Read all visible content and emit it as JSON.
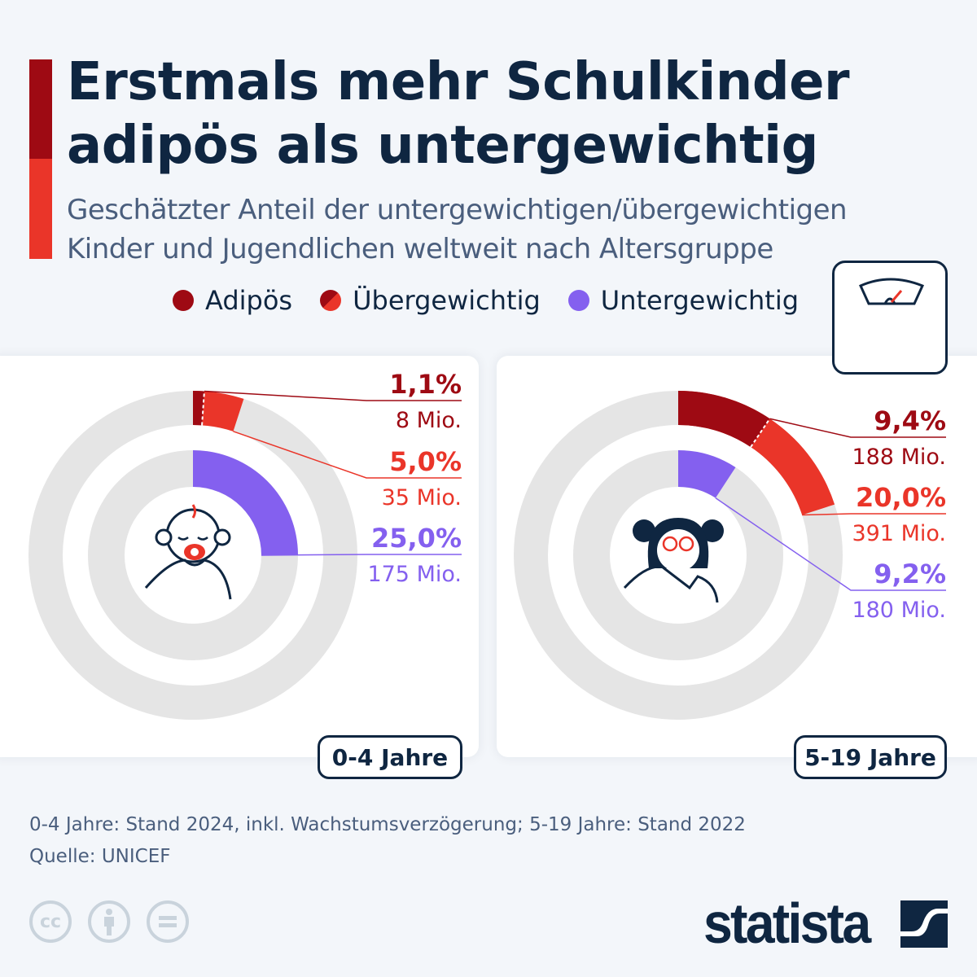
{
  "header": {
    "title_line1": "Erstmals mehr Schulkinder",
    "title_line2": "adipös als untergewichtig",
    "subtitle_line1": "Geschätzter Anteil der untergewichtigen/übergewichtigen",
    "subtitle_line2": "Kinder und Jugendlichen weltweit nach Altersgruppe"
  },
  "colors": {
    "adipoes": "#9e0a13",
    "uebergewichtig": "#ea3529",
    "untergewichtig": "#8460ef",
    "track": "#e5e5e5",
    "navy": "#0f2641"
  },
  "legend": [
    {
      "label": "Adipös",
      "icon": "circle-dark-red"
    },
    {
      "label": "Übergewichtig",
      "icon": "circle-half-red"
    },
    {
      "label": "Untergewichtig",
      "icon": "circle-purple"
    }
  ],
  "chart_data": [
    {
      "type": "pie",
      "subtype": "concentric-donut",
      "group": "0-4 Jahre",
      "icon": "baby-icon",
      "series": [
        {
          "name": "Adipös",
          "value": 1.1,
          "value_label": "1,1%",
          "count_label": "8 Mio."
        },
        {
          "name": "Übergewichtig",
          "value": 5.0,
          "value_label": "5,0%",
          "count_label": "35 Mio."
        },
        {
          "name": "Untergewichtig",
          "value": 25.0,
          "value_label": "25,0%",
          "count_label": "175 Mio."
        }
      ]
    },
    {
      "type": "pie",
      "subtype": "concentric-donut",
      "group": "5-19 Jahre",
      "icon": "girl-icon",
      "series": [
        {
          "name": "Adipös",
          "value": 9.4,
          "value_label": "9,4%",
          "count_label": "188 Mio."
        },
        {
          "name": "Übergewichtig",
          "value": 20.0,
          "value_label": "20,0%",
          "count_label": "391 Mio."
        },
        {
          "name": "Untergewichtig",
          "value": 9.2,
          "value_label": "9,2%",
          "count_label": "180 Mio."
        }
      ]
    }
  ],
  "footer": {
    "note": "0-4 Jahre: Stand 2024, inkl. Wachstumsverzögerung; 5-19 Jahre: Stand 2022",
    "source": "Quelle: UNICEF",
    "license_icons": [
      "cc-icon",
      "by-icon",
      "nd-icon"
    ],
    "cc_text": "cc",
    "logo": "statista"
  }
}
